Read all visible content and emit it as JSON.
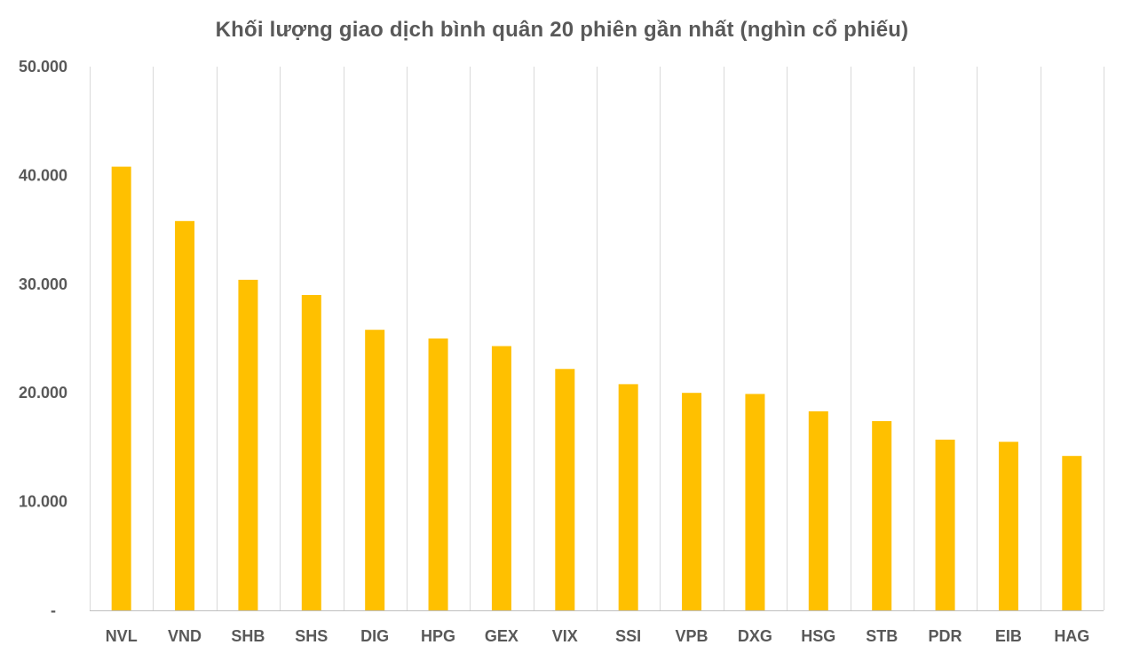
{
  "chart_data": {
    "type": "bar",
    "title": "Khối lượng giao dịch bình quân 20 phiên gần nhất (nghìn cổ phiếu)",
    "xlabel": "",
    "ylabel": "",
    "categories": [
      "NVL",
      "VND",
      "SHB",
      "SHS",
      "DIG",
      "HPG",
      "GEX",
      "VIX",
      "SSI",
      "VPB",
      "DXG",
      "HSG",
      "STB",
      "PDR",
      "EIB",
      "HAG"
    ],
    "values": [
      40800,
      35800,
      30400,
      29000,
      25800,
      25000,
      24300,
      22200,
      20800,
      20000,
      19900,
      18300,
      17400,
      15700,
      15500,
      14200
    ],
    "ylim": [
      0,
      50000
    ],
    "y_ticks": [
      0,
      10000,
      20000,
      30000,
      40000,
      50000
    ],
    "y_tick_labels": [
      "-",
      "10.000",
      "20.000",
      "30.000",
      "40.000",
      "50.000"
    ],
    "grid": "vertical",
    "legend": "none",
    "bar_color": "#FFC000",
    "grid_color": "#D9D9D9",
    "axis_color": "#BFBFBF",
    "text_color": "#595959"
  }
}
